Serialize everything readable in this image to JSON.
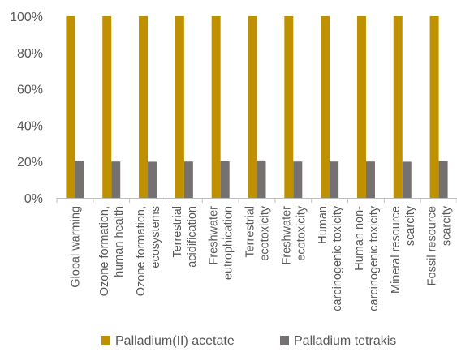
{
  "chart_data": {
    "type": "bar",
    "categories": [
      [
        "Global warming"
      ],
      [
        "Ozone formation,",
        "human health"
      ],
      [
        "Ozone formation,",
        "ecosystems"
      ],
      [
        "Terrestrial",
        "acidification"
      ],
      [
        "Freshwater",
        "eutrophication"
      ],
      [
        "Terrestrial",
        "ecotoxicity"
      ],
      [
        "Freshwater",
        "ecotoxicity"
      ],
      [
        "Human",
        "carcinogenic toxicity"
      ],
      [
        "Human non-",
        "carcinogenic toxicity"
      ],
      [
        "Mineral resource",
        "scarcity"
      ],
      [
        "Fossil resource",
        "scarcity"
      ]
    ],
    "series": [
      {
        "name": "Palladium(II) acetate",
        "color": "#BF9000",
        "values": [
          100,
          100,
          100,
          100,
          100,
          100,
          100,
          100,
          100,
          100,
          100
        ]
      },
      {
        "name": "Palladium tetrakis",
        "color": "#767171",
        "values": [
          20.3,
          20,
          19.9,
          20,
          20.1,
          20.6,
          20,
          20,
          20,
          19.9,
          20.3
        ]
      }
    ],
    "yticks": [
      "0%",
      "20%",
      "40%",
      "60%",
      "80%",
      "100%"
    ],
    "ylim": [
      0,
      100
    ],
    "legend_position": "bottom",
    "grid": false
  }
}
